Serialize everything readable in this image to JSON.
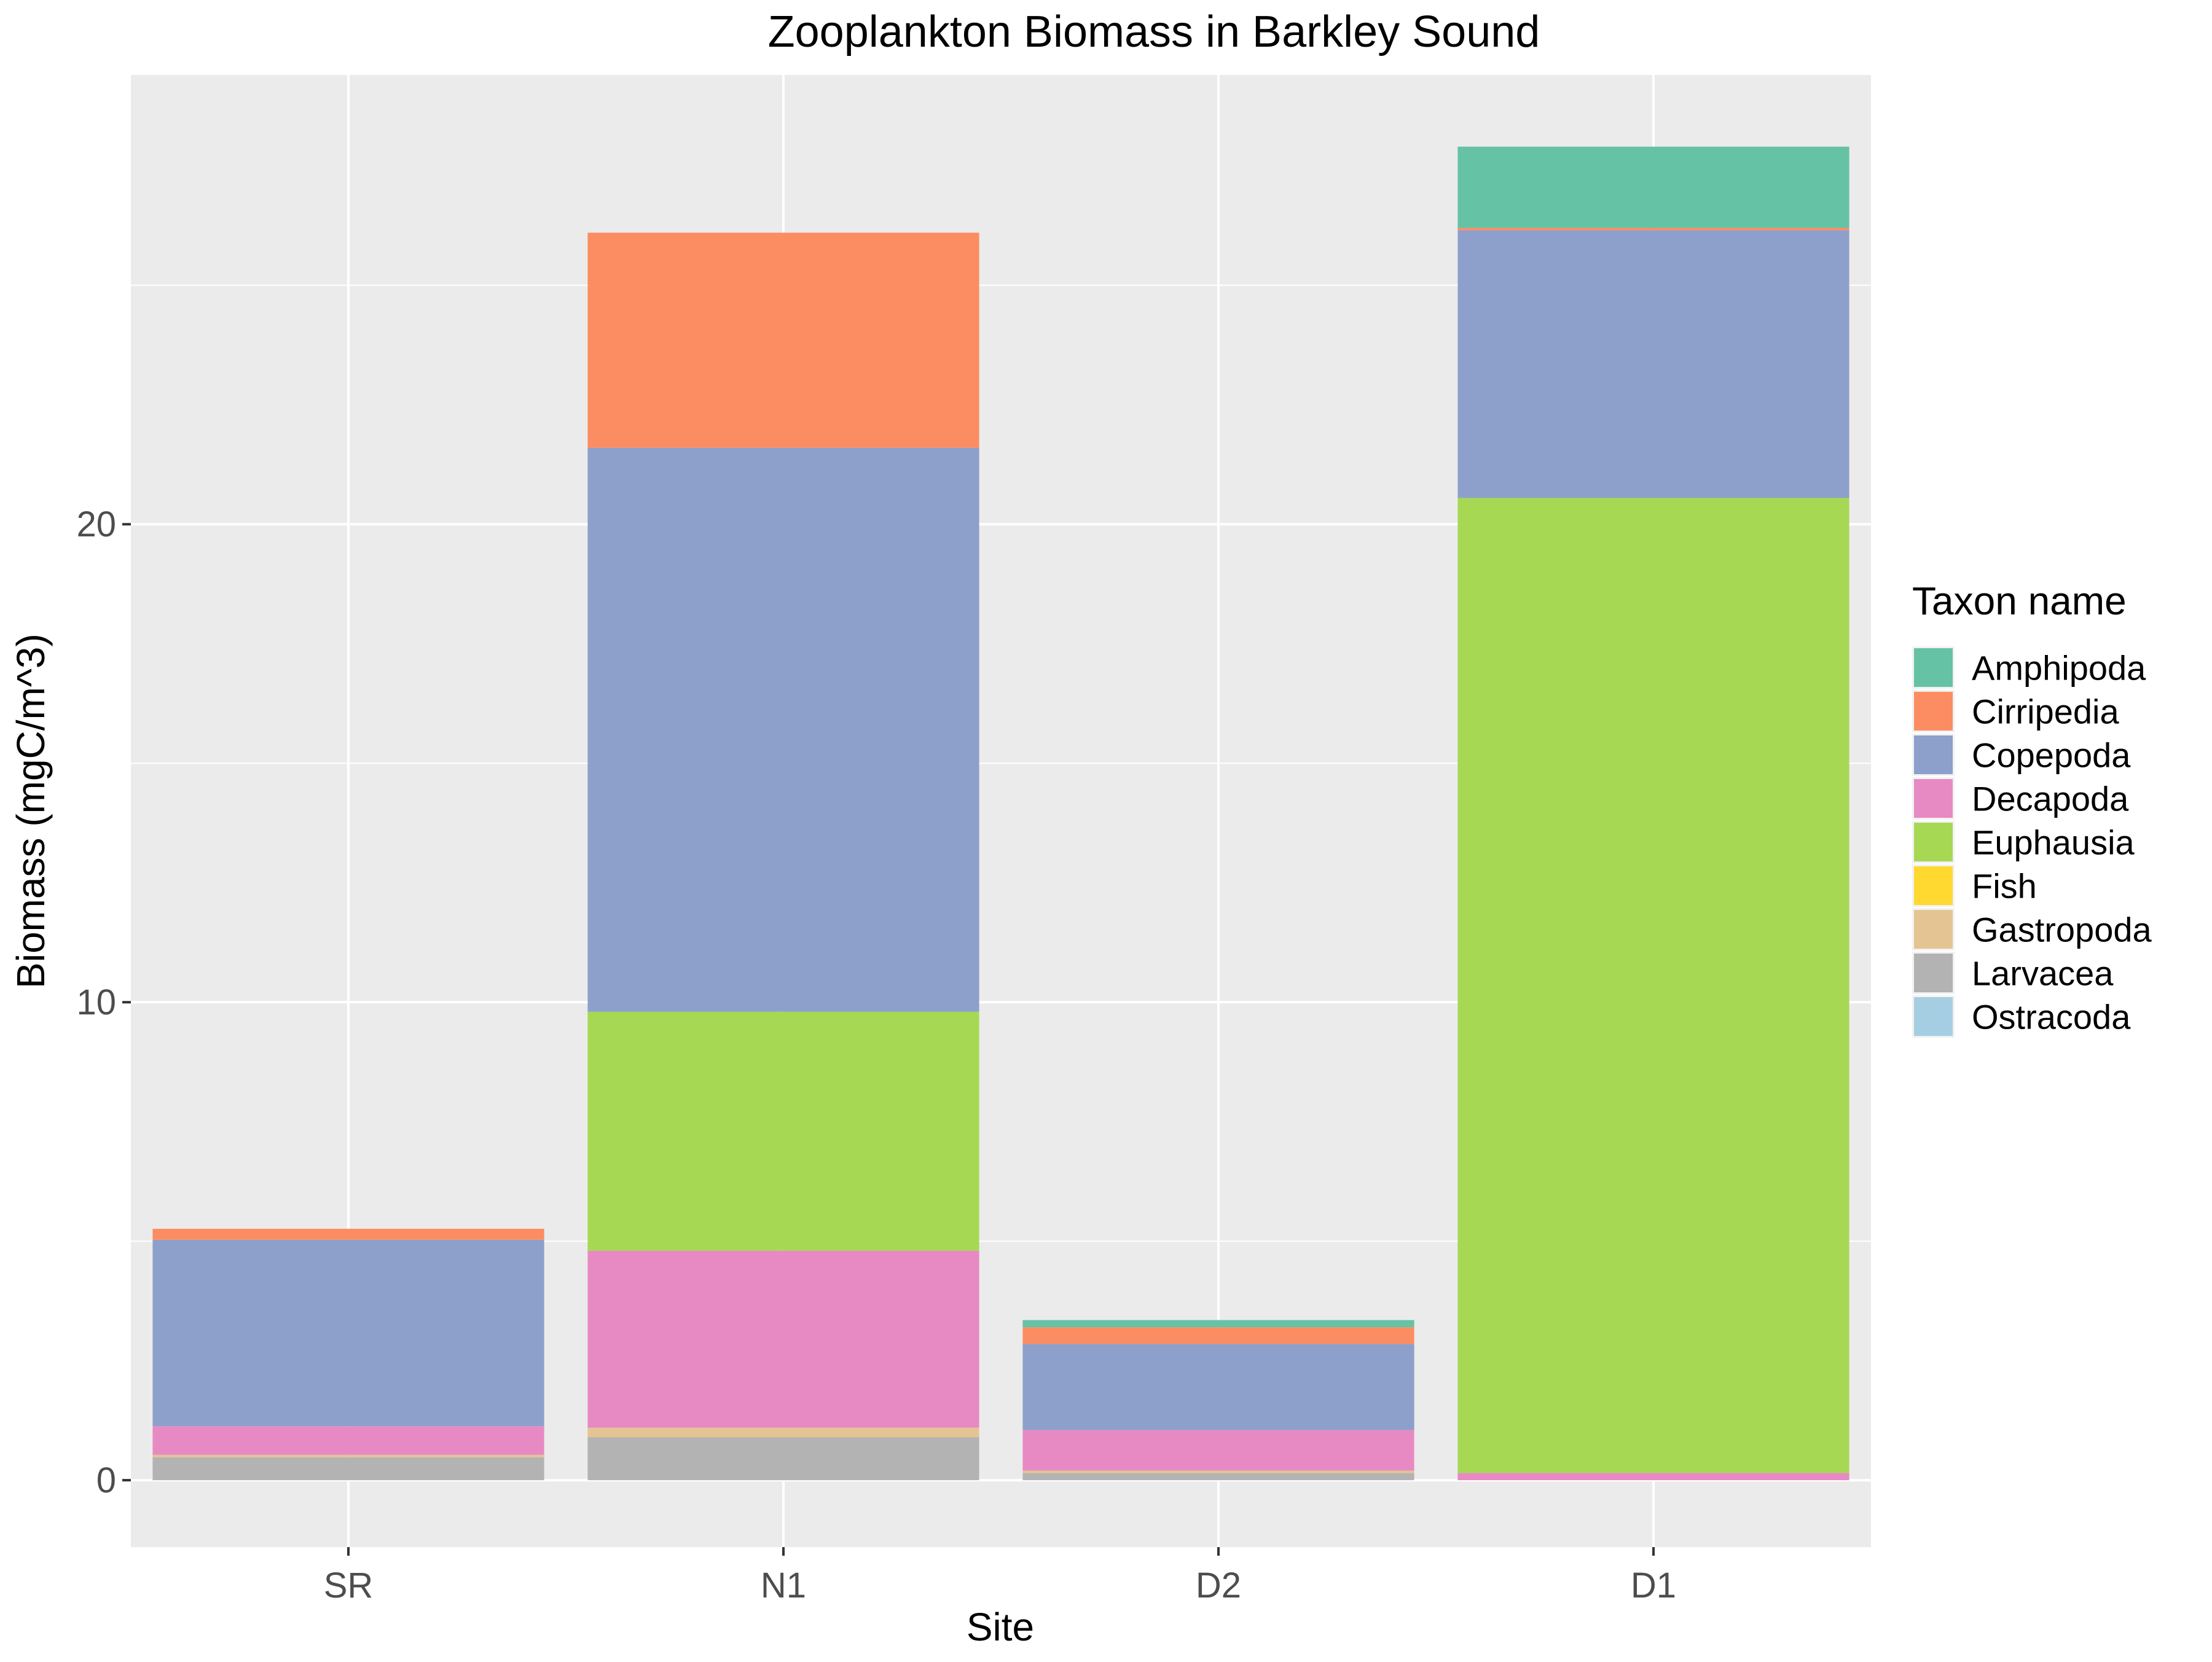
{
  "chart_data": {
    "type": "bar",
    "stacked": true,
    "title": "Zooplankton Biomass in Barkley Sound",
    "xlabel": "Site",
    "ylabel": "Biomass (mgC/m^3)",
    "categories": [
      "SR",
      "N1",
      "D2",
      "D1"
    ],
    "ylim": [
      -1.4,
      29.4
    ],
    "yticks": [
      0,
      10,
      20
    ],
    "grid": true,
    "legend": {
      "title": "Taxon name",
      "position": "right"
    },
    "series": [
      {
        "name": "Larvacea",
        "color": "#B3B3B3",
        "values": [
          0.48,
          0.9,
          0.15,
          0.0
        ]
      },
      {
        "name": "Gastropoda",
        "color": "#E5C494",
        "values": [
          0.05,
          0.2,
          0.05,
          0.0
        ]
      },
      {
        "name": "Decapoda",
        "color": "#E78AC3",
        "values": [
          0.6,
          3.7,
          0.85,
          0.15
        ]
      },
      {
        "name": "Euphausia",
        "color": "#A6D854",
        "values": [
          0.0,
          5.0,
          0.0,
          20.4
        ]
      },
      {
        "name": "Copepoda",
        "color": "#8DA0CB",
        "values": [
          3.9,
          11.8,
          1.8,
          5.6
        ]
      },
      {
        "name": "Cirripedia",
        "color": "#FC8D62",
        "values": [
          0.23,
          4.5,
          0.35,
          0.05
        ]
      },
      {
        "name": "Fish",
        "color": "#FFD92F",
        "values": [
          0.0,
          0.0,
          0.0,
          0.0
        ]
      },
      {
        "name": "Ostracoda",
        "color": "#A6CEE3",
        "values": [
          0.0,
          0.0,
          0.0,
          0.0
        ]
      },
      {
        "name": "Amphipoda",
        "color": "#66C2A5",
        "values": [
          0.0,
          0.0,
          0.15,
          1.7
        ]
      }
    ],
    "legend_order": [
      "Amphipoda",
      "Cirripedia",
      "Copepoda",
      "Decapoda",
      "Euphausia",
      "Fish",
      "Gastropoda",
      "Larvacea",
      "Ostracoda"
    ]
  }
}
